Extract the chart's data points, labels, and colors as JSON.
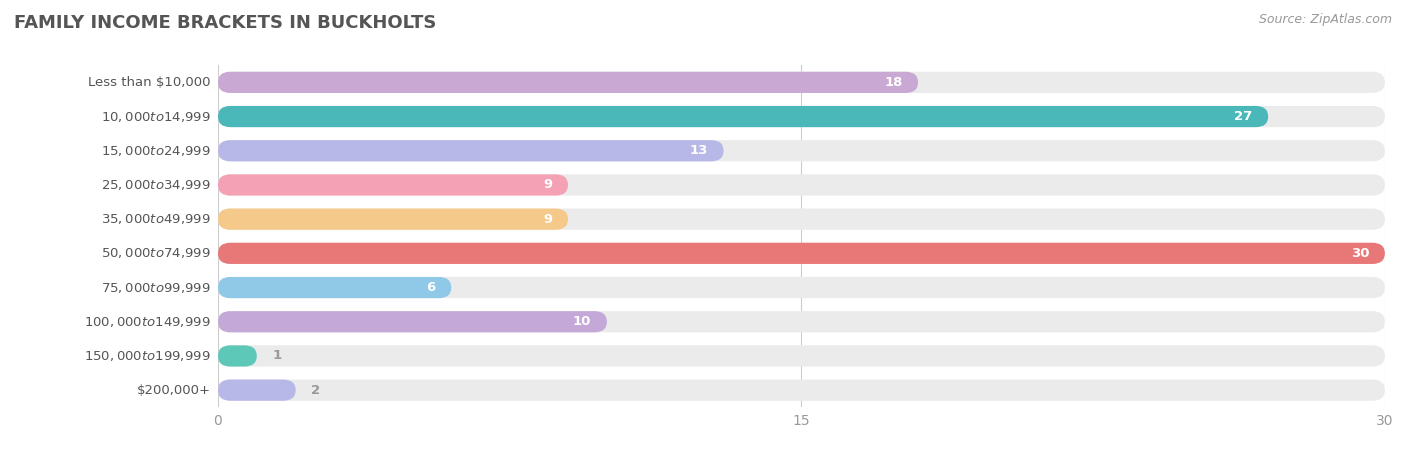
{
  "title": "FAMILY INCOME BRACKETS IN BUCKHOLTS",
  "source": "Source: ZipAtlas.com",
  "categories": [
    "Less than $10,000",
    "$10,000 to $14,999",
    "$15,000 to $24,999",
    "$25,000 to $34,999",
    "$35,000 to $49,999",
    "$50,000 to $74,999",
    "$75,000 to $99,999",
    "$100,000 to $149,999",
    "$150,000 to $199,999",
    "$200,000+"
  ],
  "values": [
    18,
    27,
    13,
    9,
    9,
    30,
    6,
    10,
    1,
    2
  ],
  "bar_colors": [
    "#c9a8d4",
    "#4ab8b8",
    "#b8b8e8",
    "#f4a0b5",
    "#f5c98a",
    "#e87878",
    "#90c8e8",
    "#c4a8d8",
    "#5dc8b8",
    "#b8b8e8"
  ],
  "xlim": [
    0,
    30
  ],
  "xticks": [
    0,
    15,
    30
  ],
  "bg_color": "#ffffff",
  "bar_bg_color": "#ebebeb",
  "title_color": "#555555",
  "source_color": "#999999",
  "value_color_inside": "#ffffff",
  "value_color_outside": "#999999",
  "label_color": "#555555",
  "bar_height": 0.62,
  "rounding": 0.32,
  "inside_threshold": 4
}
